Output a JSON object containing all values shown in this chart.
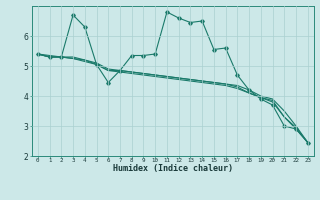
{
  "xlabel": "Humidex (Indice chaleur)",
  "bg_color": "#cce8e8",
  "grid_color": "#aad0d0",
  "line_color": "#1a7a6a",
  "xlim": [
    -0.5,
    23.5
  ],
  "ylim": [
    2,
    7
  ],
  "yticks": [
    2,
    3,
    4,
    5,
    6
  ],
  "xticks": [
    0,
    1,
    2,
    3,
    4,
    5,
    6,
    7,
    8,
    9,
    10,
    11,
    12,
    13,
    14,
    15,
    16,
    17,
    18,
    19,
    20,
    21,
    22,
    23
  ],
  "lines": [
    [
      5.4,
      5.3,
      5.3,
      6.7,
      6.3,
      5.05,
      4.45,
      4.85,
      5.35,
      5.35,
      5.4,
      6.8,
      6.6,
      6.45,
      6.5,
      5.55,
      5.6,
      4.7,
      4.2,
      3.9,
      3.7,
      3.0,
      2.9,
      2.45
    ],
    [
      5.4,
      5.3,
      5.3,
      5.3,
      5.2,
      5.05,
      4.85,
      4.85,
      4.8,
      4.75,
      4.7,
      4.65,
      4.6,
      4.55,
      4.5,
      4.45,
      4.4,
      4.35,
      4.2,
      4.0,
      3.9,
      3.5,
      3.0,
      2.45
    ],
    [
      5.4,
      5.35,
      5.3,
      5.25,
      5.2,
      5.1,
      4.9,
      4.85,
      4.8,
      4.75,
      4.7,
      4.65,
      4.6,
      4.55,
      4.5,
      4.45,
      4.4,
      4.3,
      4.1,
      3.95,
      3.85,
      3.3,
      2.95,
      2.45
    ],
    [
      5.4,
      5.3,
      5.3,
      5.25,
      5.15,
      5.05,
      4.85,
      4.8,
      4.75,
      4.7,
      4.65,
      4.6,
      4.55,
      4.5,
      4.45,
      4.4,
      4.35,
      4.25,
      4.1,
      3.95,
      3.8,
      3.3,
      2.9,
      2.45
    ]
  ]
}
